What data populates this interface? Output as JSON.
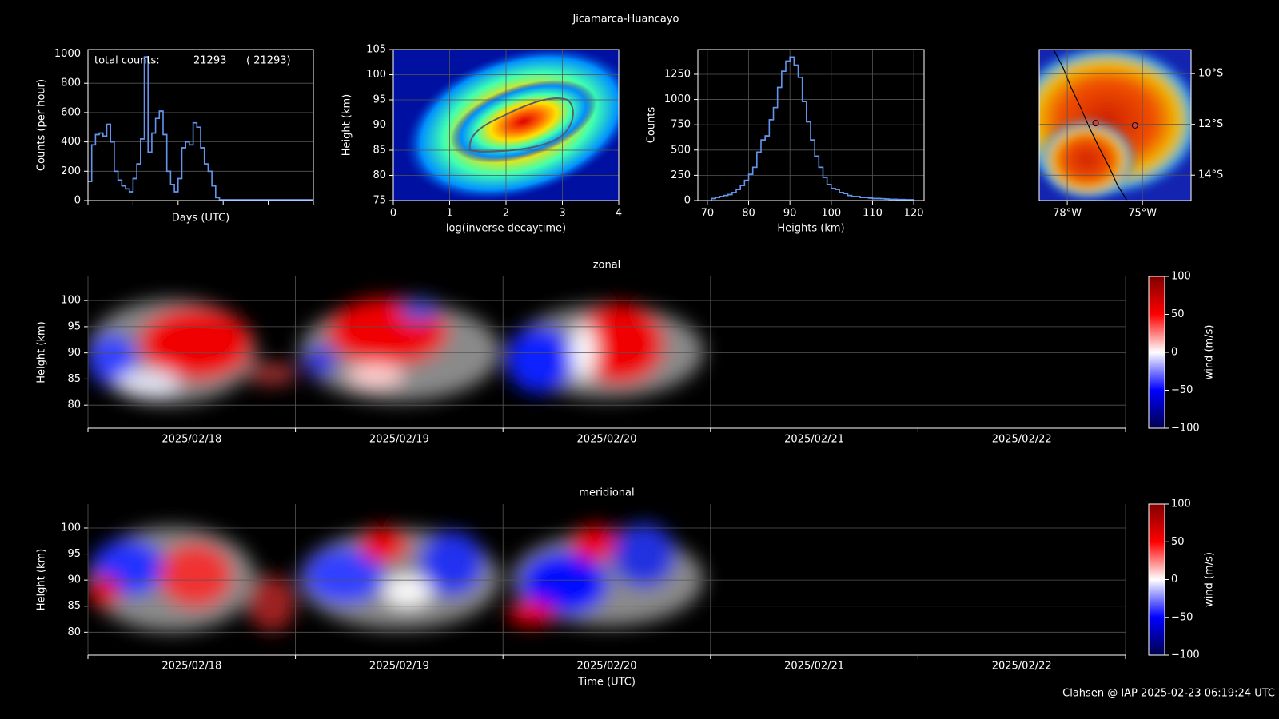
{
  "title": "Jicamarca-Huancayo",
  "footer": "Clahsen @ IAP 2025-02-23 06:19:24 UTC",
  "chart_data": [
    {
      "type": "step",
      "color": "#6495ed",
      "ylabel": "Counts (per hour)",
      "xlabel": "Days (UTC)",
      "annotations": [
        "total counts:",
        "21293",
        "( 21293)"
      ],
      "values": [
        130,
        380,
        450,
        460,
        440,
        520,
        400,
        200,
        140,
        100,
        80,
        60,
        150,
        250,
        420,
        980,
        330,
        460,
        560,
        610,
        450,
        200,
        110,
        60,
        150,
        360,
        400,
        380,
        530,
        500,
        360,
        250,
        200,
        100,
        20,
        5,
        5,
        5,
        5,
        5,
        5,
        5,
        5,
        5,
        5,
        5,
        5,
        5,
        5,
        5,
        5,
        5,
        5,
        5,
        5,
        5,
        5,
        5,
        5,
        5
      ],
      "ylim": [
        0,
        1030
      ],
      "yticks": [
        0,
        200,
        400,
        600,
        800,
        1000
      ],
      "grid": true
    },
    {
      "type": "density",
      "xlabel": "log(inverse decaytime)",
      "ylabel": "Height (km)",
      "xlim": [
        0,
        4
      ],
      "xticks": [
        0,
        1,
        2,
        3,
        4
      ],
      "ylim": [
        75,
        105
      ],
      "yticks": [
        75,
        80,
        85,
        90,
        95,
        100,
        105
      ],
      "grid": true
    },
    {
      "type": "histogram",
      "color": "#6495ed",
      "xlabel": "Heights (km)",
      "ylabel": "Counts",
      "bins": [
        71,
        72,
        73,
        74,
        75,
        76,
        77,
        78,
        79,
        80,
        81,
        82,
        83,
        84,
        85,
        86,
        87,
        88,
        89,
        90,
        91,
        92,
        93,
        94,
        95,
        96,
        97,
        98,
        99,
        100,
        101,
        102,
        103,
        104,
        105,
        106,
        107,
        108,
        109,
        110,
        111,
        112,
        113,
        114,
        115,
        116,
        117,
        118,
        119,
        120
      ],
      "values": [
        20,
        30,
        40,
        50,
        60,
        80,
        110,
        150,
        200,
        260,
        330,
        480,
        600,
        640,
        800,
        920,
        1120,
        1280,
        1380,
        1420,
        1340,
        1220,
        980,
        780,
        600,
        440,
        330,
        230,
        160,
        120,
        110,
        80,
        70,
        50,
        40,
        40,
        30,
        30,
        25,
        20,
        20,
        18,
        15,
        12,
        12,
        10,
        10,
        8,
        8
      ],
      "xlim": [
        67.7,
        122.5
      ],
      "xticks": [
        70,
        80,
        90,
        100,
        110,
        120
      ],
      "ylim": [
        0,
        1495
      ],
      "yticks": [
        0,
        250,
        500,
        750,
        1000,
        1250
      ],
      "grid": true
    },
    {
      "type": "map",
      "xlim": [
        -79.12,
        -73.06
      ],
      "xticks": [
        {
          "value": -78,
          "label": "78°W"
        },
        {
          "value": -75,
          "label": "75°W"
        }
      ],
      "ylim": [
        -15,
        -9.05
      ],
      "yticks": [
        {
          "value": -10,
          "label": "10°S"
        },
        {
          "value": -12,
          "label": "12°S"
        },
        {
          "value": -14,
          "label": "14°S"
        }
      ],
      "stations": {
        "lon": [
          -76.87,
          -75.3
        ],
        "lat": [
          -11.95,
          -12.04
        ]
      },
      "grid": true
    },
    {
      "type": "wind",
      "title": "zonal",
      "ylabel": "Height (km)",
      "categories": [
        "2025/02/18",
        "2025/02/19",
        "2025/02/20",
        "2025/02/21",
        "2025/02/22"
      ],
      "ylim": [
        75.6,
        104.6
      ],
      "yticks": [
        80,
        85,
        90,
        95,
        100
      ],
      "grid": true,
      "colorbar": {
        "label": "wind (m/s)",
        "lim": [
          -100,
          100
        ],
        "ticks": [
          {
            "value": -100,
            "label": "−100"
          },
          {
            "value": -50,
            "label": "−50"
          },
          0,
          50,
          100
        ]
      }
    },
    {
      "type": "wind",
      "title": "meridional",
      "ylabel": "Height (km)",
      "xlabel": "Time (UTC)",
      "categories": [
        "2025/02/18",
        "2025/02/19",
        "2025/02/20",
        "2025/02/21",
        "2025/02/22"
      ],
      "ylim": [
        75.6,
        104.6
      ],
      "yticks": [
        80,
        85,
        90,
        95,
        100
      ],
      "grid": true,
      "colorbar": {
        "label": "wind (m/s)",
        "lim": [
          -100,
          100
        ],
        "ticks": [
          {
            "value": -100,
            "label": "−100"
          },
          {
            "value": -50,
            "label": "−50"
          },
          0,
          50,
          100
        ]
      }
    }
  ]
}
